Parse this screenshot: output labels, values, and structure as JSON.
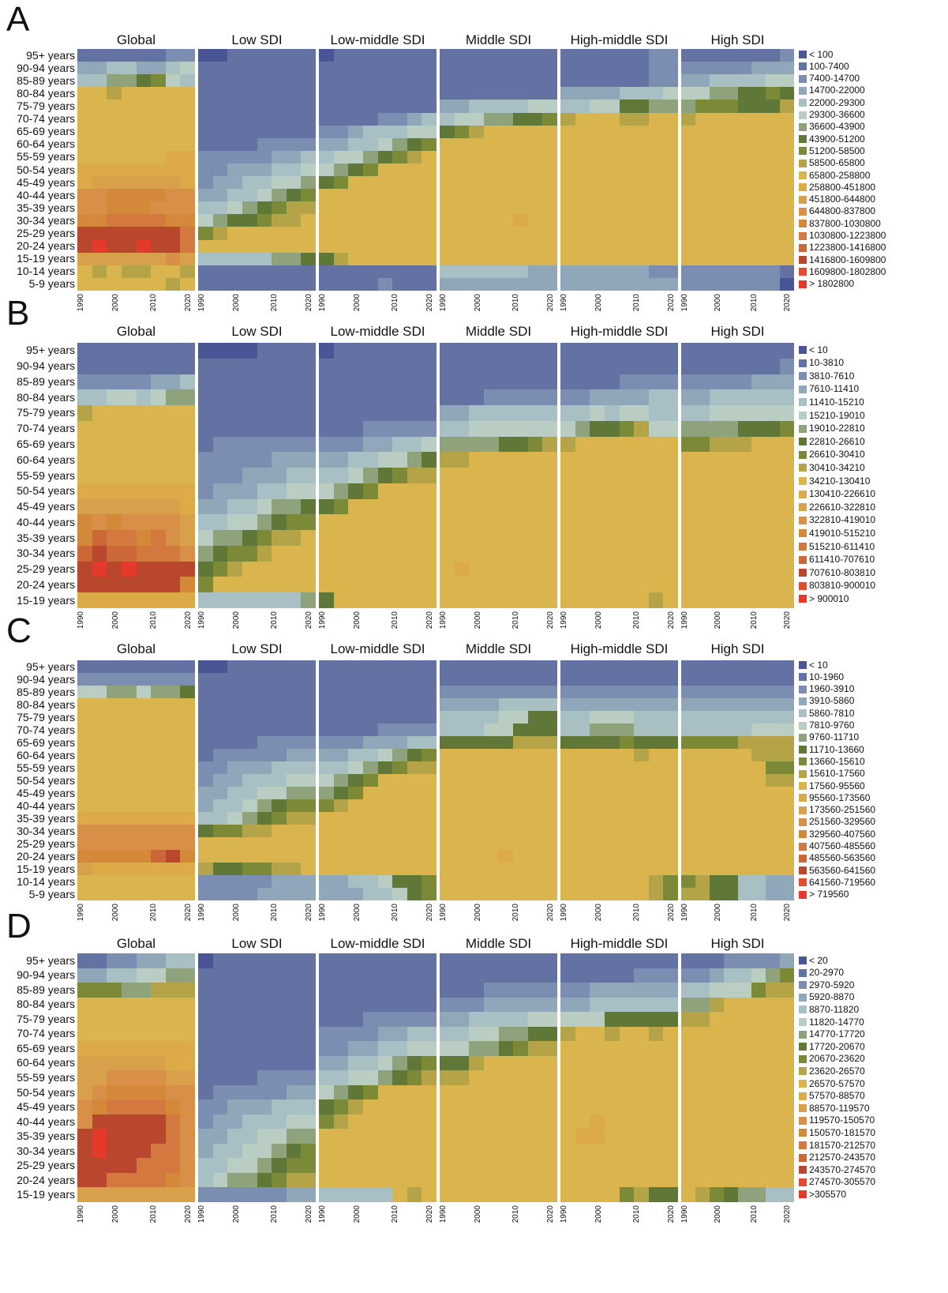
{
  "chart_data": [
    {
      "panel": "A",
      "type": "heatmap",
      "columns": [
        "Global",
        "Low SDI",
        "Low-middle SDI",
        "Middle SDI",
        "High-middle SDI",
        "High SDI"
      ],
      "ages": [
        "95+ years",
        "90-94 years",
        "85-89 years",
        "80-84 years",
        "75-79 years",
        "70-74 years",
        "65-69 years",
        "60-64 years",
        "55-59 years",
        "50-54 years",
        "45-49 years",
        "40-44 years",
        "35-39 years",
        "30-34 years",
        "25-29 years",
        "20-24 years",
        "15-19 years",
        "10-14 years",
        "5-9 years"
      ],
      "xticks": [
        "1990",
        "2000",
        "2010",
        "2020"
      ],
      "legend": [
        "< 100",
        "100-7400",
        "7400-14700",
        "14700-22000",
        "22000-29300",
        "29300-36600",
        "36600-43900",
        "43900-51200",
        "51200-58500",
        "58500-65800",
        "65800-258800",
        "258800-451800",
        "451800-644800",
        "644800-837800",
        "837800-1030800",
        "1030800-1223800",
        "1223800-1416800",
        "1416800-1609800",
        "1609800-1802800",
        "> 1802800"
      ],
      "classes": [
        [
          "11111122",
          "33443345",
          "44667854",
          "aa9aaaaa",
          "aaaaaaaa",
          "aaaaaaaa",
          "aaaaaaaa",
          "aaaaaaaa",
          "aaaaaabb",
          "bbbbbbbb",
          "bccccccb",
          "ddeeeedd",
          "ddeeeddd",
          "eeffffee",
          "hhhhhhhf",
          "hjhhjhhf",
          "ccccccdc",
          "a9a99aa9",
          "aaaaaa9a"
        ],
        [
          "00111111",
          "11111111",
          "11111111",
          "11111111",
          "11111111",
          "11111111",
          "11111111",
          "11112222",
          "22222334",
          "22333445",
          "23344556",
          "33445678",
          "44567899",
          "5677899a",
          "89aaaaaa",
          "aaaaaaaa",
          "44444667",
          "11111111",
          "11111111"
        ],
        [
          "01111111",
          "11111111",
          "11111111",
          "11111111",
          "11111111",
          "11112234",
          "22344455",
          "33445678",
          "4556789a",
          "5678aaaa",
          "78aaaaaa",
          "aaaaaaaa",
          "aaaaaaaa",
          "aaaaaaaa",
          "aaaaaaaa",
          "aaaaaaaa",
          "79aaaaaa",
          "11111111",
          "11112111"
        ],
        [
          "11111111",
          "11111111",
          "11111111",
          "11111111",
          "33444455",
          "45566778",
          "789aaaaa",
          "aaaaaaaa",
          "aaaaaaaa",
          "aaaaaaaa",
          "aaaaaaaa",
          "aaaaaaaa",
          "aaaaaaaa",
          "aaaaabaa",
          "aaaaaaaa",
          "aaaaaaaa",
          "aaaaaaaa",
          "44444433",
          "33333333"
        ],
        [
          "11111122",
          "11111122",
          "11111122",
          "33334445",
          "44557766",
          "9aaa99aa",
          "aaaaaaaa",
          "aaaaaaaa",
          "aaaaaaaa",
          "aaaaaaaa",
          "aaaaaaaa",
          "aaaaaaaa",
          "aaaaaaaa",
          "aaaaaaaa",
          "aaaaaaaa",
          "aaaaaaaa",
          "aaaaaaaa",
          "33333322",
          "33333333"
        ],
        [
          "11111112",
          "22222333",
          "33444455",
          "55667787",
          "68887779",
          "9aaaaaaa",
          "aaaaaaaa",
          "aaaaaaaa",
          "aaaaaaaa",
          "aaaaaaaa",
          "aaaaaaaa",
          "aaaaaaaa",
          "aaaaaaaa",
          "aaaaaaaa",
          "aaaaaaaa",
          "aaaaaaaa",
          "aaaaaaaa",
          "22222221",
          "22222220"
        ]
      ]
    },
    {
      "panel": "B",
      "type": "heatmap",
      "columns": [
        "Global",
        "Low SDI",
        "Low-middle SDI",
        "Middle SDI",
        "High-middle SDI",
        "High SDI"
      ],
      "ages": [
        "95+ years",
        "90-94 years",
        "85-89 years",
        "80-84 years",
        "75-79 years",
        "70-74 years",
        "65-69 years",
        "60-64 years",
        "55-59 years",
        "50-54 years",
        "45-49 years",
        "40-44 years",
        "35-39 years",
        "30-34 years",
        "25-29 years",
        "20-24 years",
        "15-19 years"
      ],
      "xticks": [
        "1990",
        "2000",
        "2010",
        "2020"
      ],
      "legend": [
        "< 10",
        "10-3810",
        "3810-7610",
        "7610-11410",
        "11410-15210",
        "15210-19010",
        "19010-22810",
        "22810-26610",
        "26610-30410",
        "30410-34210",
        "34210-130410",
        "130410-226610",
        "226610-322810",
        "322810-419010",
        "419010-515210",
        "515210-611410",
        "611410-707610",
        "707610-803810",
        "803810-900010",
        "> 900010"
      ],
      "classes": [
        [
          "11111111",
          "11111111",
          "22222334",
          "44554566",
          "9aaaaaaa",
          "aaaaaaaa",
          "aaaaaaaa",
          "aaaaaaaa",
          "aaaaaaaa",
          "bbbbbbbb",
          "cccccccb",
          "ededdddc",
          "egffefdc",
          "ghggfffd",
          "hjhjhhhh",
          "hhhhhhhe",
          "bbbbbbbb"
        ],
        [
          "00001111",
          "11111111",
          "11111111",
          "11111111",
          "11111111",
          "11111111",
          "12222222",
          "22222333",
          "22233344",
          "23334455",
          "33445667",
          "44556788",
          "5667899a",
          "67889aaa",
          "789aaaaa",
          "8aaaaaaa",
          "44444446"
        ],
        [
          "01111111",
          "11111111",
          "11111111",
          "11111111",
          "11111111",
          "11122222",
          "22233445",
          "33445567",
          "44567899",
          "5678aaaa",
          "78aaaaaa",
          "aaaaaaaa",
          "aaaaaaaa",
          "aaaaaaaa",
          "aaaaaaaa",
          "aaaaaaaa",
          "7aaaaaaa"
        ],
        [
          "11111111",
          "11111111",
          "11111111",
          "11122222",
          "33444444",
          "44555555",
          "66667789",
          "99aaaaaa",
          "aaaaaaaa",
          "aaaaaaaa",
          "aaaaaaaa",
          "aaaaaaaa",
          "aaaaaaaa",
          "aaaaaaaa",
          "abaaaaaa",
          "aaaaaaaa",
          "aaaaaaaa"
        ],
        [
          "11111111",
          "11111111",
          "11112222",
          "22333344",
          "44545544",
          "56778955",
          "9aaaaaaa",
          "aaaaaaaa",
          "aaaaaaaa",
          "aaaaaaaa",
          "aaaaaaaa",
          "aaaaaaaa",
          "aaaaaaaa",
          "aaaaaaaa",
          "aaaaaaaa",
          "aaaaaaaa",
          "aaaaaa9a"
        ],
        [
          "11111111",
          "11111112",
          "22222333",
          "33444444",
          "44555555",
          "66667778",
          "88999aaa",
          "aaaaaaaa",
          "aaaaaaaa",
          "aaaaaaaa",
          "aaaaaaaa",
          "aaaaaaaa",
          "aaaaaaaa",
          "aaaaaaaa",
          "aaaaaaaa",
          "aaaaaaaa",
          "aaaaaaaa"
        ]
      ]
    },
    {
      "panel": "C",
      "type": "heatmap",
      "columns": [
        "Global",
        "Low SDI",
        "Low-middle SDI",
        "Middle SDI",
        "High-middle SDI",
        "High SDI"
      ],
      "ages": [
        "95+ years",
        "90-94 years",
        "85-89 years",
        "80-84 years",
        "75-79 years",
        "70-74 years",
        "65-69 years",
        "60-64 years",
        "55-59 years",
        "50-54 years",
        "45-49 years",
        "40-44 years",
        "35-39 years",
        "30-34 years",
        "25-29 years",
        "20-24 years",
        "15-19 years",
        "10-14 years",
        "5-9 years"
      ],
      "xticks": [
        "1990",
        "2000",
        "2010",
        "2020"
      ],
      "legend": [
        "< 10",
        "10-1960",
        "1960-3910",
        "3910-5860",
        "5860-7810",
        "7810-9760",
        "9760-11710",
        "11710-13660",
        "13660-15610",
        "15610-17560",
        "17560-95560",
        "95560-173560",
        "173560-251560",
        "251560-329560",
        "329560-407560",
        "407560-485560",
        "485560-563560",
        "563560-641560",
        "641560-719560",
        "> 719560"
      ],
      "classes": [
        [
          "11111111",
          "22222222",
          "55665667",
          "aaaaaaaa",
          "aaaaaaaa",
          "aaaaaaaa",
          "aaaaaaaa",
          "aaaaaaaa",
          "aaaaaaaa",
          "aaaaaaaa",
          "aaaaaaaa",
          "aaaaaaaa",
          "bbbbbbbb",
          "dddddddd",
          "dddddddd",
          "eeeeeghe",
          "cbbbbbbb",
          "aaaaaaaa",
          "aaaaaaaa"
        ],
        [
          "00111111",
          "11111111",
          "11111111",
          "11111111",
          "11111111",
          "11111111",
          "11112222",
          "12222233",
          "22333444",
          "23344455",
          "33445566",
          "34456788",
          "44567899",
          "78899aaa",
          "aaaaaaaa",
          "aaaaaaaa",
          "9778899a",
          "22222333",
          "22223333"
        ],
        [
          "11111111",
          "11111111",
          "11111111",
          "11111111",
          "11111111",
          "11112222",
          "22233344",
          "33445678",
          "44567899",
          "5678aaaa",
          "678aaaaa",
          "89aaaaaa",
          "aaaaaaaa",
          "aaaaaaaa",
          "aaaaaaaa",
          "aaaaaaaa",
          "aaaaaaaa",
          "33445778",
          "33344578"
        ],
        [
          "11111111",
          "11111111",
          "22222222",
          "33334444",
          "44445577",
          "44455777",
          "77777999",
          "aaaaaaaa",
          "aaaaaaaa",
          "aaaaaaaa",
          "aaaaaaaa",
          "aaaaaaaa",
          "aaaaaaaa",
          "aaaaaaaa",
          "aaaaaaaa",
          "aaaabaaa",
          "aaaaaaaa",
          "aaaaaaaa",
          "aaaaaaaa"
        ],
        [
          "11111111",
          "11111111",
          "22222222",
          "33333333",
          "44555444",
          "44666444",
          "77778777",
          "aaaaa9aa",
          "aaaaaaaa",
          "aaaaaaaa",
          "aaaaaaaa",
          "aaaaaaaa",
          "aaaaaaaa",
          "aaaaaaaa",
          "aaaaaaaa",
          "aaaaaaaa",
          "aaaaaaaa",
          "aaaaaa98",
          "aaaaaa98"
        ],
        [
          "11111111",
          "11111111",
          "22222222",
          "33333333",
          "44444444",
          "44444555",
          "88889999",
          "aaaaa999",
          "aaaaaa88",
          "aaaaaa99",
          "aaaaaaaa",
          "aaaaaaaa",
          "aaaaaaaa",
          "aaaaaaaa",
          "aaaaaaaa",
          "aaaaaaaa",
          "aaaaaaaa",
          "89774433",
          "99774433"
        ]
      ]
    },
    {
      "panel": "D",
      "type": "heatmap",
      "columns": [
        "Global",
        "Low SDI",
        "Low-middle SDI",
        "Middle SDI",
        "High-middle SDI",
        "High SDI"
      ],
      "ages": [
        "95+ years",
        "90-94 years",
        "85-89 years",
        "80-84 years",
        "75-79 years",
        "70-74 years",
        "65-69 years",
        "60-64 years",
        "55-59 years",
        "50-54 years",
        "45-49 years",
        "40-44 years",
        "35-39 years",
        "30-34 years",
        "25-29 years",
        "20-24 years",
        "15-19 years"
      ],
      "xticks": [
        "1990",
        "2000",
        "2010",
        "2020"
      ],
      "legend": [
        "< 20",
        "20-2970",
        "2970-5920",
        "5920-8870",
        "8870-11820",
        "11820-14770",
        "14770-17720",
        "17720-20670",
        "20670-23620",
        "23620-26570",
        "26570-57570",
        "57570-88570",
        "88570-119570",
        "119570-150570",
        "150570-181570",
        "181570-212570",
        "212570-243570",
        "243570-274570",
        "274570-305570",
        ">305570"
      ],
      "classes": [
        [
          "11223344",
          "33445566",
          "88866999",
          "aaaaaaaa",
          "aaaaaaaa",
          "aaaaaaaa",
          "bbbbbbbb",
          "ccccccbb",
          "ccddddcc",
          "cdeeeedd",
          "deffffed",
          "dhhhhhfd",
          "hjhhhhfd",
          "hjhhhffd",
          "hhhhfffd",
          "hhffffed",
          "cccccccc"
        ],
        [
          "01111111",
          "11111111",
          "11111111",
          "11111111",
          "11111111",
          "11111111",
          "11111111",
          "11111111",
          "11112222",
          "12222233",
          "22333444",
          "23344455",
          "33445566",
          "34455678",
          "44556788",
          "45667899",
          "22222233"
        ],
        [
          "11111111",
          "11111111",
          "11111111",
          "11111111",
          "11122222",
          "22223344",
          "22334455",
          "33445678",
          "44556789",
          "5678aaaa",
          "789aaaaa",
          "89aaaaaa",
          "aaaaaaaa",
          "aaaaaaaa",
          "aaaaaaaa",
          "aaaaaaaa",
          "44444a9a"
        ],
        [
          "11111111",
          "11111111",
          "11122222",
          "22233333",
          "33444455",
          "44556677",
          "55667899",
          "779aaaaa",
          "99aaaaaa",
          "aaaaaaaa",
          "aaaaaaaa",
          "aaaaaaaa",
          "aaaaaaaa",
          "aaaaaaaa",
          "aaaaaaaa",
          "aaaaaaaa",
          "aaaaaaaa"
        ],
        [
          "11111111",
          "11111222",
          "22333333",
          "33444444",
          "55577777",
          "9aa9aa9a",
          "aaaaaaaa",
          "aaaaaaaa",
          "aaaaaaaa",
          "aaaaaaaa",
          "aaaaaaaa",
          "aabaaaaa",
          "abbaaaaa",
          "aaaaaaaa",
          "aaaaaaaa",
          "aaaaaaaa",
          "aaaa8977"
        ],
        [
          "11122223",
          "22344568",
          "44555899",
          "669aaaaa",
          "99aaaaaa",
          "aaaaaaaa",
          "aaaaaaaa",
          "aaaaaaaa",
          "aaaaaaaa",
          "aaaaaaaa",
          "aaaaaaaa",
          "aaaaaaaa",
          "aaaaaaaa",
          "aaaaaaaa",
          "aaaaaaaa",
          "aaaaaaaa",
          "a9876644"
        ]
      ]
    }
  ],
  "palette": [
    "#4a5595",
    "#6471a3",
    "#7b8db0",
    "#8fa7b8",
    "#a8bfc4",
    "#b9cdc3",
    "#8ea37c",
    "#5f7838",
    "#7c8a38",
    "#b5a447",
    "#dab44d",
    "#dcab47",
    "#d9a04c",
    "#d88f47",
    "#d3883a",
    "#d3783f",
    "#cc6838",
    "#b8472e",
    "#e34b2e",
    "#e5392c"
  ]
}
